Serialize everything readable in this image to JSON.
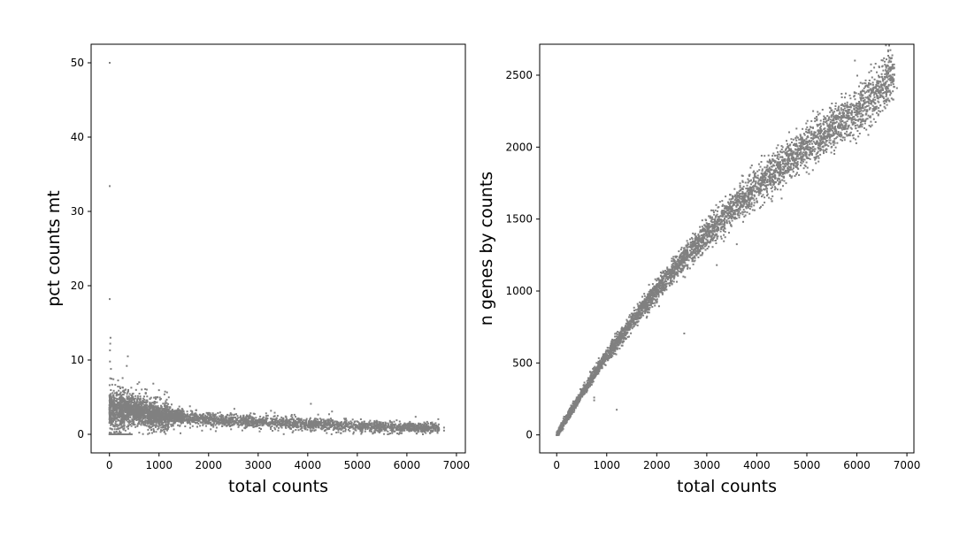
{
  "chart_data": [
    {
      "type": "scatter",
      "xlabel": "total counts",
      "ylabel": "pct counts mt",
      "xlim": [
        -370,
        7180
      ],
      "ylim": [
        -2.5,
        52.5
      ],
      "xticks": [
        0,
        1000,
        2000,
        3000,
        4000,
        5000,
        6000,
        7000
      ],
      "yticks": [
        0,
        10,
        20,
        30,
        40,
        50
      ],
      "xtick_labels": [
        "0",
        "1000",
        "2000",
        "3000",
        "4000",
        "5000",
        "6000",
        "7000"
      ],
      "ytick_labels": [
        "0",
        "10",
        "20",
        "30",
        "40",
        "50"
      ],
      "color": "#808080",
      "series": [
        {
          "trend": [
            {
              "x": 10,
              "y": 3.0
            },
            {
              "x": 300,
              "y": 3.5
            },
            {
              "x": 600,
              "y": 3.0
            },
            {
              "x": 1000,
              "y": 2.6
            },
            {
              "x": 1500,
              "y": 2.3
            },
            {
              "x": 2000,
              "y": 2.0
            },
            {
              "x": 3000,
              "y": 1.7
            },
            {
              "x": 4000,
              "y": 1.4
            },
            {
              "x": 5000,
              "y": 1.1
            },
            {
              "x": 6000,
              "y": 0.9
            },
            {
              "x": 6800,
              "y": 0.8
            }
          ],
          "outliers": [
            {
              "x": 5,
              "y": 50.0
            },
            {
              "x": 5,
              "y": 33.4
            },
            {
              "x": 5,
              "y": 18.2
            },
            {
              "x": 20,
              "y": 13.0
            },
            {
              "x": 15,
              "y": 12.2
            },
            {
              "x": 10,
              "y": 11.3
            },
            {
              "x": 10,
              "y": 9.8
            },
            {
              "x": 30,
              "y": 8.8
            },
            {
              "x": 370,
              "y": 10.5
            },
            {
              "x": 350,
              "y": 9.2
            },
            {
              "x": 600,
              "y": 7.0
            },
            {
              "x": 6400,
              "y": 0.5
            },
            {
              "x": 6750,
              "y": 0.5
            },
            {
              "x": 6750,
              "y": 0.9
            }
          ]
        }
      ]
    },
    {
      "type": "scatter",
      "xlabel": "total counts",
      "ylabel": "n genes by counts",
      "xlim": [
        -340,
        7140
      ],
      "ylim": [
        -125,
        2715
      ],
      "xticks": [
        0,
        1000,
        2000,
        3000,
        4000,
        5000,
        6000,
        7000
      ],
      "yticks": [
        0,
        500,
        1000,
        1500,
        2000,
        2500
      ],
      "xtick_labels": [
        "0",
        "1000",
        "2000",
        "3000",
        "4000",
        "5000",
        "6000",
        "7000"
      ],
      "ytick_labels": [
        "0",
        "500",
        "1000",
        "1500",
        "2000",
        "2500"
      ],
      "color": "#808080",
      "series": [
        {
          "trend": [
            {
              "x": 0,
              "y": 0
            },
            {
              "x": 200,
              "y": 120
            },
            {
              "x": 500,
              "y": 290
            },
            {
              "x": 1000,
              "y": 560
            },
            {
              "x": 1500,
              "y": 800
            },
            {
              "x": 2000,
              "y": 1020
            },
            {
              "x": 2500,
              "y": 1220
            },
            {
              "x": 3000,
              "y": 1410
            },
            {
              "x": 3500,
              "y": 1580
            },
            {
              "x": 4000,
              "y": 1740
            },
            {
              "x": 4500,
              "y": 1890
            },
            {
              "x": 5000,
              "y": 2020
            },
            {
              "x": 5500,
              "y": 2140
            },
            {
              "x": 6000,
              "y": 2270
            },
            {
              "x": 6500,
              "y": 2420
            },
            {
              "x": 6800,
              "y": 2570
            }
          ],
          "outliers": [
            {
              "x": 750,
              "y": 260
            },
            {
              "x": 750,
              "y": 240
            },
            {
              "x": 1200,
              "y": 175
            },
            {
              "x": 2550,
              "y": 705
            },
            {
              "x": 3600,
              "y": 1325
            },
            {
              "x": 3200,
              "y": 1180
            },
            {
              "x": 4300,
              "y": 1625
            },
            {
              "x": 6800,
              "y": 2410
            },
            {
              "x": 6600,
              "y": 2490
            }
          ]
        }
      ]
    }
  ]
}
